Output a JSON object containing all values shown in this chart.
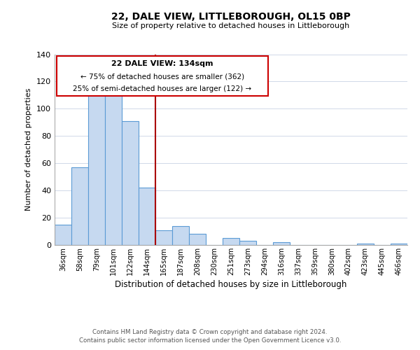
{
  "title": "22, DALE VIEW, LITTLEBOROUGH, OL15 0BP",
  "subtitle": "Size of property relative to detached houses in Littleborough",
  "xlabel": "Distribution of detached houses by size in Littleborough",
  "ylabel": "Number of detached properties",
  "categories": [
    "36sqm",
    "58sqm",
    "79sqm",
    "101sqm",
    "122sqm",
    "144sqm",
    "165sqm",
    "187sqm",
    "208sqm",
    "230sqm",
    "251sqm",
    "273sqm",
    "294sqm",
    "316sqm",
    "337sqm",
    "359sqm",
    "380sqm",
    "402sqm",
    "423sqm",
    "445sqm",
    "466sqm"
  ],
  "values": [
    15,
    57,
    114,
    118,
    91,
    42,
    11,
    14,
    8,
    0,
    5,
    3,
    0,
    2,
    0,
    0,
    0,
    0,
    1,
    0,
    1
  ],
  "bar_color": "#c6d9f0",
  "bar_edge_color": "#5b9bd5",
  "vline_x": 5.5,
  "vline_color": "#aa0000",
  "ylim": [
    0,
    140
  ],
  "yticks": [
    0,
    20,
    40,
    60,
    80,
    100,
    120,
    140
  ],
  "annotation_title": "22 DALE VIEW: 134sqm",
  "annotation_line1": "← 75% of detached houses are smaller (362)",
  "annotation_line2": "25% of semi-detached houses are larger (122) →",
  "footer_line1": "Contains HM Land Registry data © Crown copyright and database right 2024.",
  "footer_line2": "Contains public sector information licensed under the Open Government Licence v3.0.",
  "background_color": "#ffffff",
  "grid_color": "#d0d8e8"
}
